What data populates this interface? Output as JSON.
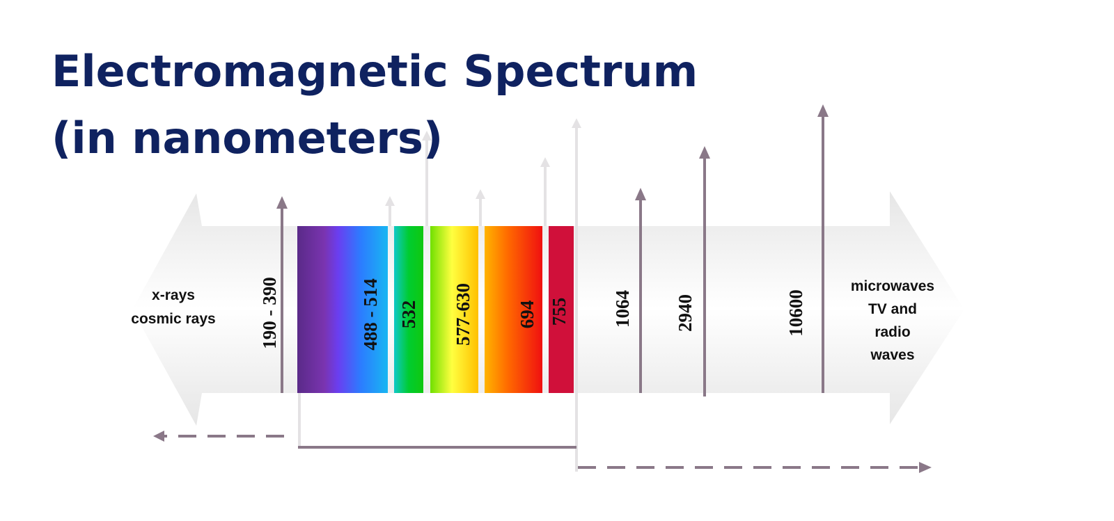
{
  "title": [
    "Electromagnetic Spectrum",
    "(in nanometers)"
  ],
  "left_label": [
    "x-rays",
    "cosmic rays"
  ],
  "right_label": [
    "microwaves",
    "TV and",
    "radio",
    "waves"
  ],
  "wavelengths": [
    "190 - 390",
    "488 - 514",
    "532",
    "577-630",
    "694",
    "755",
    "1064",
    "2940",
    "10600"
  ]
}
